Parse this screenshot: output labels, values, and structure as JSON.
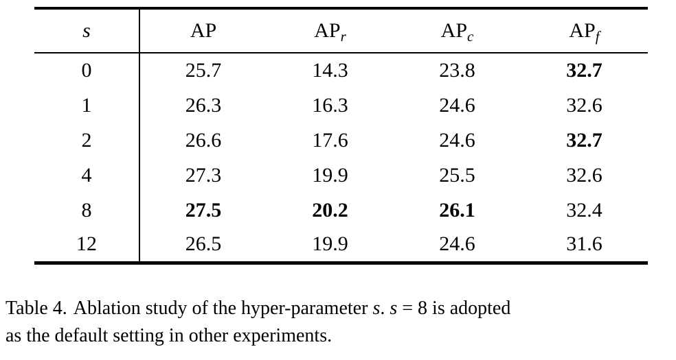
{
  "table": {
    "header": {
      "s_label": "s",
      "columns": [
        {
          "base": "AP",
          "sub": ""
        },
        {
          "base": "AP",
          "sub": "r"
        },
        {
          "base": "AP",
          "sub": "c"
        },
        {
          "base": "AP",
          "sub": "f"
        }
      ]
    },
    "rows": [
      {
        "s": "0",
        "values": [
          {
            "text": "25.7",
            "bold": false
          },
          {
            "text": "14.3",
            "bold": false
          },
          {
            "text": "23.8",
            "bold": false
          },
          {
            "text": "32.7",
            "bold": true
          }
        ]
      },
      {
        "s": "1",
        "values": [
          {
            "text": "26.3",
            "bold": false
          },
          {
            "text": "16.3",
            "bold": false
          },
          {
            "text": "24.6",
            "bold": false
          },
          {
            "text": "32.6",
            "bold": false
          }
        ]
      },
      {
        "s": "2",
        "values": [
          {
            "text": "26.6",
            "bold": false
          },
          {
            "text": "17.6",
            "bold": false
          },
          {
            "text": "24.6",
            "bold": false
          },
          {
            "text": "32.7",
            "bold": true
          }
        ]
      },
      {
        "s": "4",
        "values": [
          {
            "text": "27.3",
            "bold": false
          },
          {
            "text": "19.9",
            "bold": false
          },
          {
            "text": "25.5",
            "bold": false
          },
          {
            "text": "32.6",
            "bold": false
          }
        ]
      },
      {
        "s": "8",
        "values": [
          {
            "text": "27.5",
            "bold": true
          },
          {
            "text": "20.2",
            "bold": true
          },
          {
            "text": "26.1",
            "bold": true
          },
          {
            "text": "32.4",
            "bold": false
          }
        ]
      },
      {
        "s": "12",
        "values": [
          {
            "text": "26.5",
            "bold": false
          },
          {
            "text": "19.9",
            "bold": false
          },
          {
            "text": "24.6",
            "bold": false
          },
          {
            "text": "31.6",
            "bold": false
          }
        ]
      }
    ]
  },
  "caption": {
    "lines": [
      {
        "segments": [
          {
            "text": "Table 4.",
            "italic": false
          },
          {
            "text": "Ablation study of the hyper-parameter ",
            "italic": false
          },
          {
            "text": "s",
            "italic": true
          },
          {
            "text": ". ",
            "italic": false
          },
          {
            "text": "s",
            "italic": true
          },
          {
            "text": " = 8 is adopted",
            "italic": false
          }
        ]
      },
      {
        "segments": [
          {
            "text": "as the default setting in other experiments.",
            "italic": false
          }
        ]
      }
    ]
  },
  "colors": {
    "text": "#000000",
    "background": "#ffffff",
    "rule": "#000000"
  }
}
